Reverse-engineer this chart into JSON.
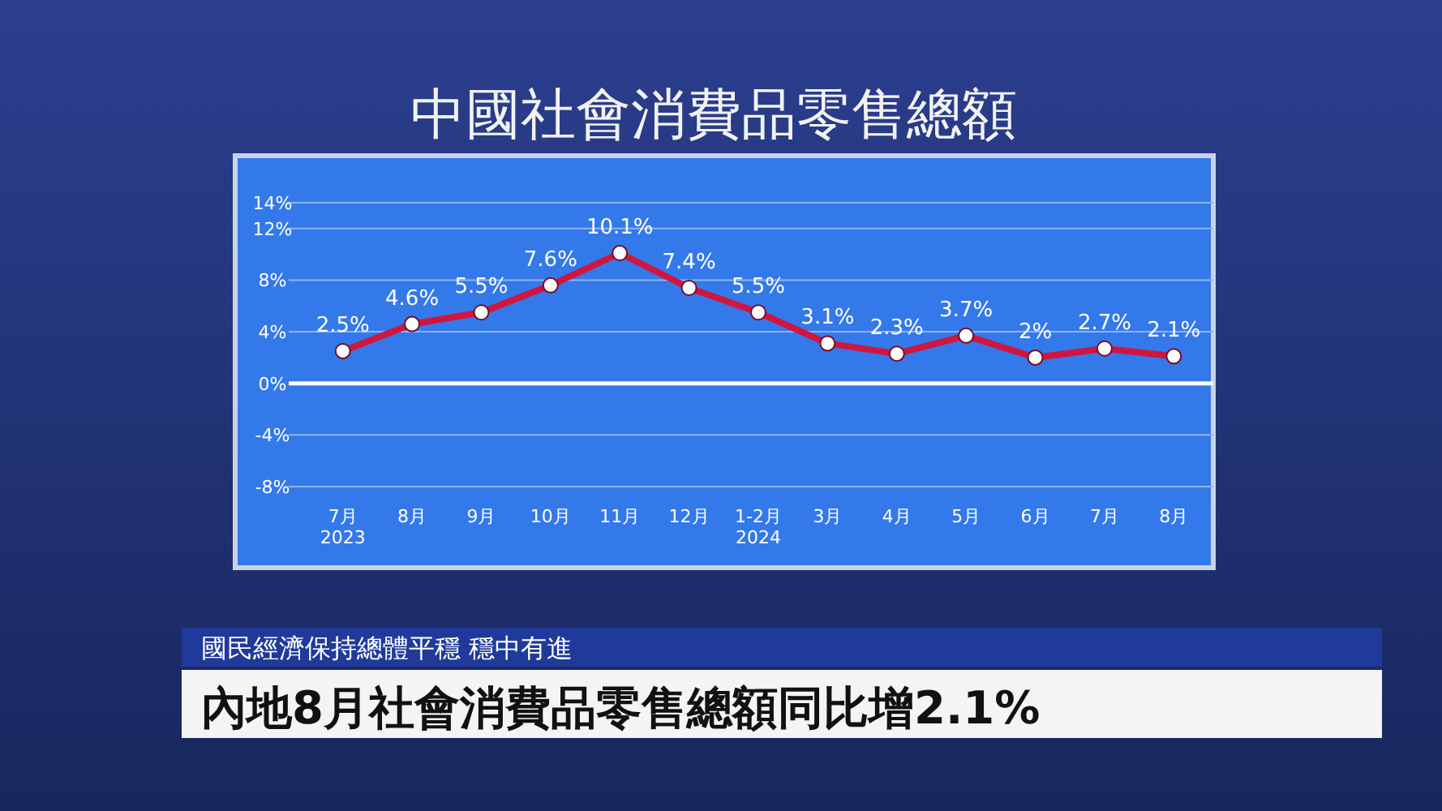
{
  "chart_data": {
    "type": "line",
    "title": "中國社會消費品零售總額",
    "categories": [
      "7月\n2023",
      "8月",
      "9月",
      "10月",
      "11月",
      "12月",
      "1-2月\n2024",
      "3月",
      "4月",
      "5月",
      "6月",
      "7月",
      "8月"
    ],
    "values": [
      2.5,
      4.6,
      5.5,
      7.6,
      10.1,
      7.4,
      5.5,
      3.1,
      2.3,
      3.7,
      2,
      2.7,
      2.1
    ],
    "value_labels": [
      "2.5%",
      "4.6%",
      "5.5%",
      "7.6%",
      "10.1%",
      "7.4%",
      "5.5%",
      "3.1%",
      "2.3%",
      "3.7%",
      "2%",
      "2.7%",
      "2.1%"
    ],
    "color": "#d0163f",
    "marker": "circle",
    "ylim": [
      -8,
      14
    ],
    "yticks": [
      {
        "value": 14,
        "label": "14%"
      },
      {
        "value": 12,
        "label": "12%"
      },
      {
        "value": 8,
        "label": "8%"
      },
      {
        "value": 4,
        "label": "4%"
      },
      {
        "value": 0,
        "label": "0%"
      },
      {
        "value": -4,
        "label": "-4%"
      },
      {
        "value": -8,
        "label": "-8%"
      }
    ],
    "grid": "y",
    "ref_lines": [
      {
        "axis": "y",
        "value": 0,
        "color": "#ffffff"
      }
    ],
    "annotations": [
      "國民經濟保持總體平穩 穩中有進",
      "內地8月社會消費品零售總額同比增2.1%"
    ]
  }
}
